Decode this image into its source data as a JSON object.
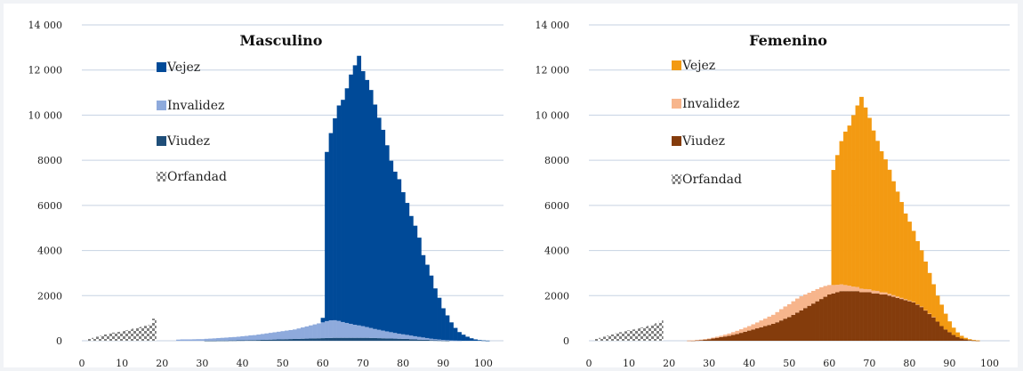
{
  "chart_data": [
    {
      "type": "bar",
      "stacked": true,
      "title": "Masculino",
      "ylim": [
        0,
        14000
      ],
      "xlim": [
        0,
        105
      ],
      "yticks": [
        "0",
        "2000",
        "4000",
        "6000",
        "8000",
        "10 000",
        "12 000",
        "14 000"
      ],
      "xticks": [
        "0",
        "10",
        "20",
        "30",
        "40",
        "50",
        "60",
        "70",
        "80",
        "90",
        "100"
      ],
      "grid": true,
      "legend_position": "top-left",
      "series": [
        {
          "name": "Vejez",
          "color": "#004a98"
        },
        {
          "name": "Invalidez",
          "color": "#8eaadc"
        },
        {
          "name": "Viudez",
          "color": "#1f4e79"
        },
        {
          "name": "Orfandad",
          "color": "#7f7f7f",
          "pattern": "checker"
        }
      ],
      "ages": [
        2,
        3,
        4,
        5,
        6,
        7,
        8,
        9,
        10,
        11,
        12,
        13,
        14,
        15,
        16,
        17,
        18,
        24,
        25,
        26,
        27,
        28,
        29,
        30,
        31,
        32,
        33,
        34,
        35,
        36,
        37,
        38,
        39,
        40,
        41,
        42,
        43,
        44,
        45,
        46,
        47,
        48,
        49,
        50,
        51,
        52,
        53,
        54,
        55,
        56,
        57,
        58,
        59,
        60,
        61,
        62,
        63,
        64,
        65,
        66,
        67,
        68,
        69,
        70,
        71,
        72,
        73,
        74,
        75,
        76,
        77,
        78,
        79,
        80,
        81,
        82,
        83,
        84,
        85,
        86,
        87,
        88,
        89,
        90,
        91,
        92,
        93,
        94,
        95,
        96,
        97,
        98,
        99,
        100,
        101,
        102
      ],
      "values": {
        "Vejez": [
          0,
          0,
          0,
          0,
          0,
          0,
          0,
          0,
          0,
          0,
          0,
          0,
          0,
          0,
          0,
          0,
          0,
          0,
          0,
          0,
          0,
          0,
          0,
          0,
          0,
          0,
          0,
          0,
          0,
          0,
          0,
          0,
          0,
          0,
          0,
          0,
          0,
          0,
          0,
          0,
          0,
          0,
          0,
          0,
          0,
          0,
          0,
          0,
          0,
          0,
          0,
          0,
          0,
          200,
          7500,
          8300,
          8950,
          9550,
          9850,
          10400,
          11050,
          11500,
          11950,
          11300,
          10950,
          10550,
          9950,
          9400,
          8900,
          8250,
          7600,
          7150,
          6850,
          6300,
          5850,
          5300,
          4900,
          4400,
          3650,
          3250,
          2800,
          2250,
          1850,
          1400,
          1100,
          800,
          560,
          380,
          270,
          180,
          110,
          60,
          30,
          15,
          5,
          0
        ],
        "Invalidez": [
          0,
          0,
          0,
          0,
          0,
          0,
          0,
          0,
          0,
          0,
          0,
          0,
          0,
          0,
          0,
          0,
          0,
          50,
          60,
          60,
          60,
          65,
          70,
          70,
          80,
          90,
          100,
          110,
          120,
          130,
          140,
          150,
          160,
          180,
          190,
          210,
          220,
          240,
          260,
          280,
          300,
          320,
          340,
          360,
          380,
          400,
          420,
          460,
          500,
          540,
          580,
          620,
          660,
          700,
          750,
          780,
          780,
          750,
          700,
          660,
          620,
          580,
          550,
          520,
          480,
          440,
          400,
          370,
          340,
          310,
          280,
          250,
          220,
          200,
          180,
          160,
          140,
          120,
          100,
          80,
          60,
          50,
          40,
          30,
          20,
          15,
          10,
          5,
          0,
          0,
          0,
          0,
          0,
          0,
          0,
          0
        ],
        "Viudez": [
          0,
          0,
          0,
          0,
          0,
          0,
          0,
          0,
          0,
          0,
          0,
          0,
          0,
          0,
          0,
          0,
          0,
          0,
          0,
          0,
          0,
          0,
          0,
          0,
          5,
          5,
          5,
          10,
          10,
          10,
          15,
          15,
          20,
          20,
          25,
          30,
          30,
          35,
          40,
          45,
          50,
          55,
          60,
          65,
          70,
          75,
          80,
          85,
          90,
          95,
          100,
          105,
          110,
          115,
          120,
          125,
          130,
          130,
          130,
          130,
          130,
          130,
          130,
          130,
          130,
          125,
          120,
          115,
          110,
          105,
          100,
          95,
          90,
          85,
          80,
          70,
          60,
          50,
          45,
          40,
          30,
          20,
          15,
          10,
          5,
          0,
          0,
          0,
          0,
          0,
          0,
          0,
          0,
          0,
          0,
          0
        ],
        "Orfandad": [
          80,
          130,
          180,
          220,
          280,
          320,
          360,
          390,
          420,
          460,
          500,
          540,
          580,
          620,
          660,
          700,
          980,
          0,
          0,
          0,
          0,
          0,
          0,
          0,
          0,
          0,
          0,
          0,
          0,
          0,
          0,
          0,
          0,
          0,
          0,
          0,
          0,
          0,
          0,
          0,
          0,
          0,
          0,
          0,
          0,
          0,
          0,
          0,
          0,
          0,
          0,
          0,
          0,
          0,
          0,
          0,
          0,
          0,
          0,
          0,
          0,
          0,
          0,
          0,
          0,
          0,
          0,
          0,
          0,
          0,
          0,
          0,
          0,
          0,
          0,
          0,
          0,
          0,
          0,
          0,
          0,
          0,
          0,
          0,
          0,
          0,
          0,
          0,
          0,
          0,
          0,
          0,
          0,
          0,
          0,
          0
        ]
      }
    },
    {
      "type": "bar",
      "stacked": true,
      "title": "Femenino",
      "ylim": [
        0,
        14000
      ],
      "xlim": [
        0,
        105
      ],
      "yticks": [
        "0",
        "2000",
        "4000",
        "6000",
        "8000",
        "10 000",
        "12 000",
        "14 000"
      ],
      "xticks": [
        "0",
        "10",
        "20",
        "30",
        "40",
        "50",
        "60",
        "70",
        "80",
        "90",
        "100"
      ],
      "grid": true,
      "legend_position": "top-left",
      "series": [
        {
          "name": "Vejez",
          "color": "#f39a12"
        },
        {
          "name": "Invalidez",
          "color": "#f7b58c"
        },
        {
          "name": "Viudez",
          "color": "#843c0c"
        },
        {
          "name": "Orfandad",
          "color": "#7f7f7f",
          "pattern": "checker"
        }
      ],
      "ages": [
        2,
        3,
        4,
        5,
        6,
        7,
        8,
        9,
        10,
        11,
        12,
        13,
        14,
        15,
        16,
        17,
        18,
        21,
        22,
        23,
        24,
        25,
        26,
        27,
        28,
        29,
        30,
        31,
        32,
        33,
        34,
        35,
        36,
        37,
        38,
        39,
        40,
        41,
        42,
        43,
        44,
        45,
        46,
        47,
        48,
        49,
        50,
        51,
        52,
        53,
        54,
        55,
        56,
        57,
        58,
        59,
        60,
        61,
        62,
        63,
        64,
        65,
        66,
        67,
        68,
        69,
        70,
        71,
        72,
        73,
        74,
        75,
        76,
        77,
        78,
        79,
        80,
        81,
        82,
        83,
        84,
        85,
        86,
        87,
        88,
        89,
        90,
        91,
        92,
        93,
        94,
        95,
        96,
        97,
        98,
        99,
        100,
        101,
        102
      ],
      "values": {
        "Vejez": [
          0,
          0,
          0,
          0,
          0,
          0,
          0,
          0,
          0,
          0,
          0,
          0,
          0,
          0,
          0,
          0,
          0,
          0,
          0,
          0,
          0,
          0,
          0,
          0,
          0,
          0,
          0,
          0,
          0,
          0,
          0,
          0,
          0,
          0,
          0,
          0,
          0,
          0,
          0,
          0,
          0,
          0,
          0,
          0,
          0,
          0,
          0,
          0,
          0,
          0,
          0,
          0,
          0,
          0,
          0,
          0,
          0,
          5100,
          5750,
          6350,
          6800,
          7100,
          7600,
          8050,
          8500,
          8050,
          7600,
          7100,
          6650,
          6250,
          5900,
          5500,
          5050,
          4650,
          4250,
          3800,
          3500,
          3150,
          2800,
          2500,
          2150,
          1800,
          1450,
          1150,
          950,
          700,
          480,
          320,
          200,
          120,
          70,
          40,
          20,
          10,
          0,
          0,
          0,
          0,
          0,
          0,
          0
        ],
        "Invalidez": [
          0,
          0,
          0,
          0,
          0,
          0,
          0,
          0,
          0,
          0,
          0,
          0,
          0,
          0,
          0,
          0,
          0,
          0,
          0,
          0,
          0,
          5,
          10,
          15,
          20,
          25,
          30,
          40,
          50,
          60,
          80,
          100,
          120,
          140,
          160,
          180,
          200,
          230,
          260,
          300,
          330,
          370,
          400,
          450,
          500,
          540,
          570,
          600,
          620,
          620,
          600,
          580,
          560,
          540,
          520,
          480,
          420,
          370,
          330,
          300,
          270,
          240,
          200,
          180,
          160,
          140,
          130,
          120,
          110,
          100,
          90,
          80,
          70,
          60,
          50,
          40,
          30,
          20,
          15,
          10,
          10,
          5,
          5,
          0,
          0,
          0,
          0,
          0,
          0,
          0,
          0,
          0,
          0,
          0,
          0,
          0,
          0,
          0,
          0
        ],
        "Viudez": [
          0,
          0,
          0,
          0,
          0,
          0,
          0,
          0,
          0,
          0,
          0,
          0,
          0,
          0,
          0,
          0,
          0,
          0,
          0,
          0,
          0,
          5,
          10,
          20,
          30,
          50,
          70,
          100,
          130,
          160,
          190,
          220,
          260,
          300,
          350,
          400,
          450,
          500,
          550,
          600,
          650,
          700,
          750,
          820,
          900,
          980,
          1050,
          1150,
          1250,
          1350,
          1450,
          1550,
          1650,
          1750,
          1850,
          1950,
          2050,
          2100,
          2150,
          2200,
          2200,
          2200,
          2200,
          2200,
          2150,
          2150,
          2150,
          2100,
          2100,
          2050,
          2050,
          2000,
          1950,
          1900,
          1850,
          1800,
          1750,
          1700,
          1600,
          1500,
          1350,
          1200,
          1050,
          850,
          650,
          500,
          380,
          260,
          170,
          100,
          60,
          30,
          15,
          5,
          0,
          0,
          0,
          0,
          0
        ],
        "Orfandad": [
          80,
          130,
          180,
          230,
          280,
          330,
          380,
          420,
          460,
          500,
          540,
          580,
          620,
          660,
          720,
          780,
          900,
          0,
          0,
          0,
          0,
          0,
          0,
          0,
          0,
          0,
          0,
          0,
          0,
          0,
          0,
          0,
          0,
          0,
          0,
          0,
          0,
          0,
          0,
          0,
          0,
          0,
          0,
          0,
          0,
          0,
          0,
          0,
          0,
          0,
          0,
          0,
          0,
          0,
          0,
          0,
          0,
          0,
          0,
          0,
          0,
          0,
          0,
          0,
          0,
          0,
          0,
          0,
          0,
          0,
          0,
          0,
          0,
          0,
          0,
          0,
          0,
          0,
          0,
          0,
          0,
          0,
          0,
          0,
          0,
          0,
          0,
          0,
          0,
          0,
          0,
          0,
          0,
          0,
          0,
          0,
          0,
          0,
          0
        ]
      }
    }
  ]
}
